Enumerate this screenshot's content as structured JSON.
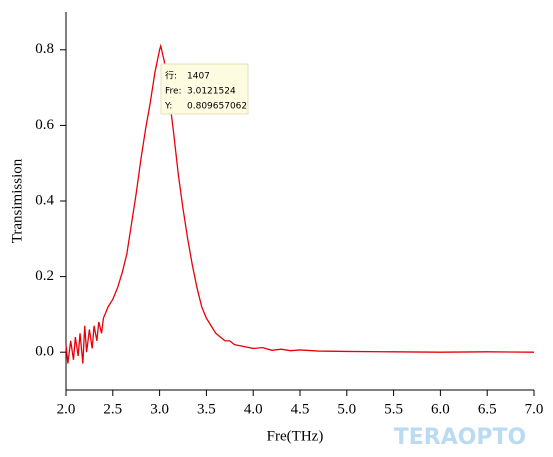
{
  "chart_data": {
    "type": "line",
    "x_label": "Fre(THz)",
    "y_label": "Transimission",
    "xlim": [
      2.0,
      7.0
    ],
    "ylim": [
      -0.1,
      0.9
    ],
    "xticks": [
      {
        "value": 2,
        "label": "2.0"
      },
      2.5,
      {
        "value": 3,
        "label": "3.0"
      },
      3.5,
      {
        "value": 4,
        "label": "4.0"
      },
      4.5,
      {
        "value": 5,
        "label": "5.0"
      },
      5.5,
      {
        "value": 6,
        "label": "6.0"
      },
      6.5,
      {
        "value": 7,
        "label": "7.0"
      }
    ],
    "yticks": [
      {
        "value": 0,
        "label": "0.0"
      },
      0.2,
      0.4,
      0.6,
      0.8
    ],
    "series": [
      {
        "color": "#e8000b",
        "x": [
          2.0,
          2.02,
          2.05,
          2.08,
          2.1,
          2.13,
          2.15,
          2.18,
          2.2,
          2.22,
          2.25,
          2.28,
          2.3,
          2.33,
          2.35,
          2.38,
          2.4,
          2.45,
          2.5,
          2.55,
          2.6,
          2.65,
          2.7,
          2.75,
          2.8,
          2.85,
          2.9,
          2.95,
          3.0,
          3.012,
          3.05,
          3.1,
          3.15,
          3.2,
          3.25,
          3.3,
          3.35,
          3.4,
          3.45,
          3.5,
          3.55,
          3.6,
          3.65,
          3.7,
          3.75,
          3.8,
          3.9,
          4.0,
          4.1,
          4.2,
          4.3,
          4.4,
          4.5,
          4.7,
          5.0,
          5.5,
          6.0,
          6.5,
          7.0
        ],
        "values": [
          0.02,
          -0.03,
          0.03,
          -0.02,
          0.04,
          -0.01,
          0.05,
          -0.03,
          0.07,
          0.0,
          0.06,
          0.01,
          0.07,
          0.03,
          0.08,
          0.05,
          0.09,
          0.12,
          0.14,
          0.17,
          0.21,
          0.26,
          0.34,
          0.42,
          0.51,
          0.59,
          0.66,
          0.74,
          0.8,
          0.81,
          0.77,
          0.68,
          0.58,
          0.47,
          0.38,
          0.3,
          0.23,
          0.17,
          0.12,
          0.09,
          0.07,
          0.05,
          0.04,
          0.03,
          0.03,
          0.02,
          0.015,
          0.01,
          0.012,
          0.005,
          0.008,
          0.004,
          0.006,
          0.003,
          0.002,
          0.001,
          0.0,
          0.001,
          0.0
        ]
      }
    ],
    "tooltip": {
      "rows": [
        [
          "行:",
          "1407"
        ],
        [
          "Fre:",
          "3.0121524"
        ],
        [
          "Y:",
          "0.809657062"
        ]
      ]
    },
    "watermark": "TERAOPTO"
  }
}
